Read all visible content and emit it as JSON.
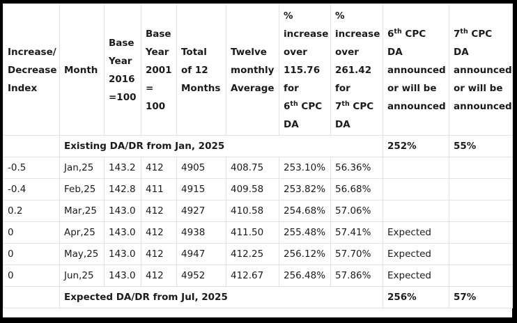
{
  "headers": [
    {
      "lines": [
        "Increase/",
        "Decrease",
        "Index"
      ]
    },
    {
      "lines": [
        "Month"
      ]
    },
    {
      "lines": [
        "Base",
        "Year",
        "2016",
        "=100"
      ]
    },
    {
      "lines": [
        "Base",
        "Year",
        "2001",
        "=",
        "100"
      ]
    },
    {
      "lines": [
        "Total",
        "of 12",
        "Months"
      ]
    },
    {
      "lines": [
        "Twelve",
        "monthly",
        "Average"
      ]
    },
    {
      "lines": [
        "%",
        "increase",
        "over",
        "115.76",
        "for",
        "6th CPC",
        "DA"
      ]
    },
    {
      "lines": [
        "%",
        "increase",
        "over",
        "261.42",
        "for",
        "7th CPC",
        "DA"
      ]
    },
    {
      "lines": [
        "6th CPC",
        "DA",
        "announced",
        "or will be",
        "announced"
      ]
    },
    {
      "lines": [
        "7th CPC",
        "DA",
        "announced",
        "or will be",
        "announced"
      ]
    }
  ],
  "existing_row": {
    "label": "Existing DA/DR from Jan, 2025",
    "da6": "252%",
    "da7": "55%"
  },
  "rows": [
    {
      "index": "-0.5",
      "month": "Jan,25",
      "base2016": "143.2",
      "base2001": "412",
      "total": "4905",
      "avg": "408.75",
      "pct6": "253.10%",
      "pct7": "56.36%",
      "ann6": "",
      "ann7": ""
    },
    {
      "index": "-0.4",
      "month": "Feb,25",
      "base2016": "142.8",
      "base2001": "411",
      "total": "4915",
      "avg": "409.58",
      "pct6": "253.82%",
      "pct7": "56.68%",
      "ann6": "",
      "ann7": ""
    },
    {
      "index": "0.2",
      "month": "Mar,25",
      "base2016": "143.0",
      "base2001": "412",
      "total": "4927",
      "avg": "410.58",
      "pct6": "254.68%",
      "pct7": "57.06%",
      "ann6": "",
      "ann7": ""
    },
    {
      "index": "0",
      "month": "Apr,25",
      "base2016": "143.0",
      "base2001": "412",
      "total": "4938",
      "avg": "411.50",
      "pct6": "255.48%",
      "pct7": "57.41%",
      "ann6": "Expected",
      "ann7": ""
    },
    {
      "index": "0",
      "month": "May,25",
      "base2016": "143.0",
      "base2001": "412",
      "total": "4947",
      "avg": "412.25",
      "pct6": "256.12%",
      "pct7": "57.70%",
      "ann6": "Expected",
      "ann7": ""
    },
    {
      "index": "0",
      "month": "Jun,25",
      "base2016": "143.0",
      "base2001": "412",
      "total": "4952",
      "avg": "412.67",
      "pct6": "256.48%",
      "pct7": "57.86%",
      "ann6": "Expected",
      "ann7": ""
    }
  ],
  "expected_row": {
    "label": "Expected DA/DR from Jul, 2025",
    "da6": "256%",
    "da7": "57%"
  }
}
